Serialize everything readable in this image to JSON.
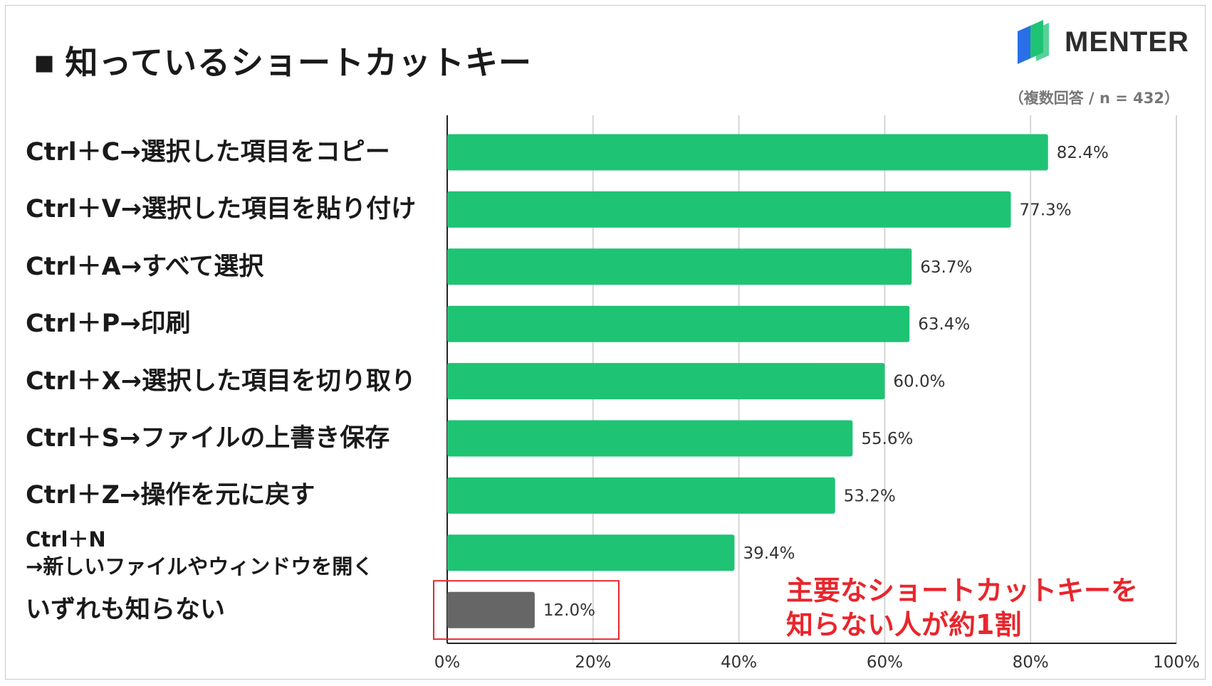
{
  "title": "知っているショートカットキー",
  "title_marker": "■",
  "brand": "MENTER",
  "note": "（複数回答 / n = 432）",
  "colors": {
    "bar": "#1fc374",
    "bar_highlight": "#666666",
    "annotation": "#e8262c",
    "logo_green": "#1fc374",
    "logo_blue": "#2a6fe8"
  },
  "annotation": "主要なショートカットキーを\n知らない人が約1割",
  "chart_data": {
    "type": "bar",
    "orientation": "horizontal",
    "categories": [
      "Ctrl＋C→選択した項目をコピー",
      "Ctrl＋V→選択した項目を貼り付け",
      "Ctrl＋A→すべて選択",
      "Ctrl＋P→印刷",
      "Ctrl＋X→選択した項目を切り取り",
      "Ctrl＋S→ファイルの上書き保存",
      "Ctrl＋Z→操作を元に戻す",
      "Ctrl＋N\n→新しいファイルやウィンドウを開く",
      "いずれも知らない"
    ],
    "values": [
      82.4,
      77.3,
      63.7,
      63.4,
      60.0,
      55.6,
      53.2,
      39.4,
      12.0
    ],
    "value_labels": [
      "82.4%",
      "77.3%",
      "63.7%",
      "63.4%",
      "60.0%",
      "55.6%",
      "53.2%",
      "39.4%",
      "12.0%"
    ],
    "highlighted": [
      false,
      false,
      false,
      false,
      false,
      false,
      false,
      false,
      true
    ],
    "x_ticks": [
      "0%",
      "20%",
      "40%",
      "60%",
      "80%",
      "100%"
    ],
    "xlim": [
      0,
      100
    ],
    "grid": true
  }
}
